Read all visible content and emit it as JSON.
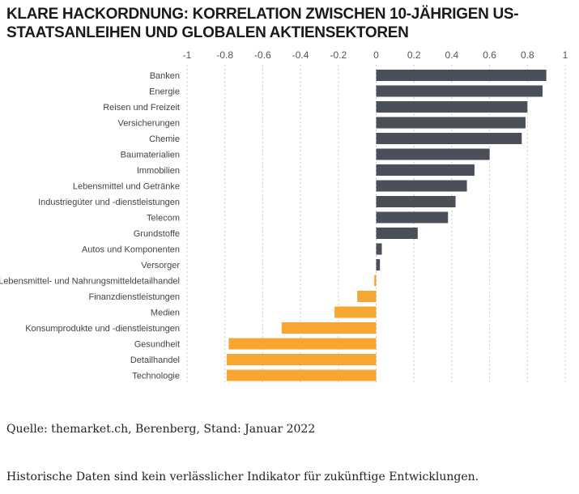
{
  "title": {
    "line1": "Klare Hackordnung: Korrelation zwischen 10-jährigen US-",
    "line2": "Staatsanleihen und globalen Aktiensektoren"
  },
  "source": "Quelle: themarket.ch, Berenberg, Stand: Januar 2022",
  "disclaimer": "Historische Daten sind kein verlässlicher Indikator für zukünftige Entwicklungen.",
  "colors": {
    "positive": "#4a4f59",
    "negative": "#f7a731",
    "grid": "#c8c8c8"
  },
  "chart_data": {
    "type": "bar",
    "orientation": "horizontal",
    "title": "Klare Hackordnung: Korrelation zwischen 10-jährigen US-Staatsanleihen und globalen Aktiensektoren",
    "xlim": [
      -1,
      1
    ],
    "x_ticks": [
      -1,
      -0.8,
      -0.6,
      -0.4,
      -0.2,
      0,
      0.2,
      0.4,
      0.6,
      0.8,
      1
    ],
    "x_tick_labels": [
      "-1",
      "-0.8",
      "-0.6",
      "-0.4",
      "-0.2",
      "0",
      "0.2",
      "0.4",
      "0.6",
      "0.8",
      "1"
    ],
    "grid": "vertical dotted",
    "categories": [
      "Banken",
      "Energie",
      "Reisen und Freizeit",
      "Versicherungen",
      "Chemie",
      "Baumaterialien",
      "Immobilien",
      "Lebensmittel und Getränke",
      "Industriegüter und -dienstleistungen",
      "Telecom",
      "Grundstoffe",
      "Autos und Komponenten",
      "Versorger",
      "Lebensmittel- und Nahrungsmitteldetailhandel",
      "Finanzdienstleistungen",
      "Medien",
      "Konsumprodukte und -dienstleistungen",
      "Gesundheit",
      "Detailhandel",
      "Technologie"
    ],
    "values": [
      0.9,
      0.88,
      0.8,
      0.79,
      0.77,
      0.6,
      0.52,
      0.48,
      0.42,
      0.38,
      0.22,
      0.03,
      0.02,
      -0.01,
      -0.1,
      -0.22,
      -0.5,
      -0.78,
      -0.79,
      -0.79
    ]
  }
}
